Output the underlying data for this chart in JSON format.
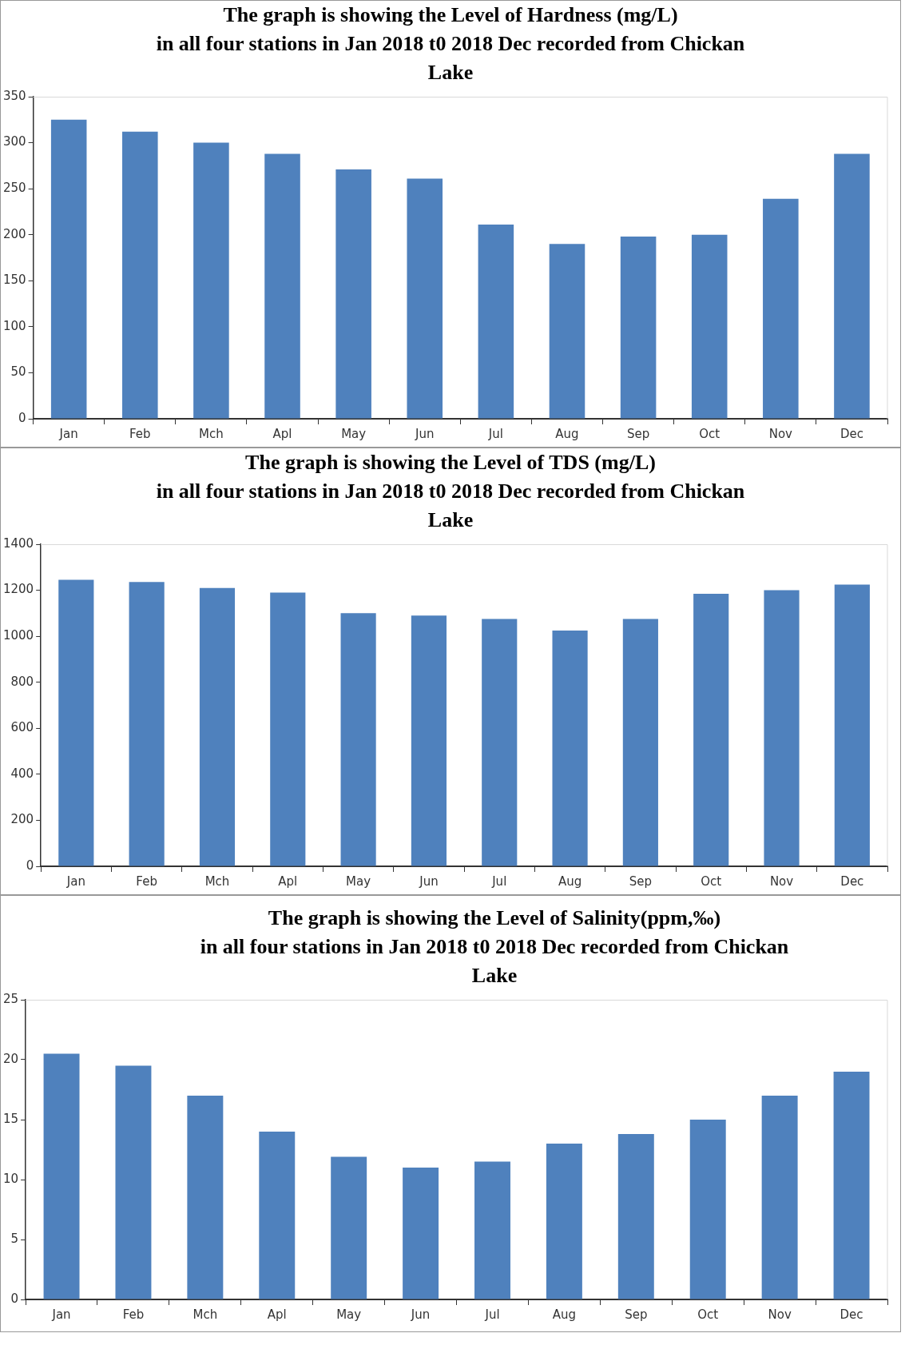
{
  "chart_data": [
    {
      "type": "bar",
      "title": "The graph is showing the Level of Hardness (mg/L)\nin all four stations in Jan 2018 t0 2018 Dec recorded from Chickan\nLake",
      "categories": [
        "Jan",
        "Feb",
        "Mch",
        "Apl",
        "May",
        "Jun",
        "Jul",
        "Aug",
        "Sep",
        "Oct",
        "Nov",
        "Dec"
      ],
      "values": [
        325,
        312,
        300,
        288,
        271,
        261,
        211,
        190,
        198,
        200,
        239,
        288
      ],
      "color": "#4f81bd",
      "ylim": [
        0,
        350
      ],
      "yticks": [
        0,
        50,
        100,
        150,
        200,
        250,
        300,
        350
      ],
      "grid": false
    },
    {
      "type": "bar",
      "title": "The graph is showing the Level of TDS (mg/L)\nin all four stations in Jan 2018 t0 2018 Dec recorded from Chickan\nLake",
      "categories": [
        "Jan",
        "Feb",
        "Mch",
        "Apl",
        "May",
        "Jun",
        "Jul",
        "Aug",
        "Sep",
        "Oct",
        "Nov",
        "Dec"
      ],
      "values": [
        1245,
        1236,
        1210,
        1190,
        1100,
        1090,
        1075,
        1025,
        1075,
        1185,
        1200,
        1225
      ],
      "color": "#4f81bd",
      "ylim": [
        0,
        1400
      ],
      "yticks": [
        0,
        200,
        400,
        600,
        800,
        1000,
        1200,
        1400
      ],
      "grid": false
    },
    {
      "type": "bar",
      "title": "The graph is showing the Level of Salinity(ppm,‰)\nin all four stations in Jan 2018 t0 2018 Dec recorded from Chickan\nLake",
      "categories": [
        "Jan",
        "Feb",
        "Mch",
        "Apl",
        "May",
        "Jun",
        "Jul",
        "Aug",
        "Sep",
        "Oct",
        "Nov",
        "Dec"
      ],
      "values": [
        20.5,
        19.5,
        17,
        14,
        11.9,
        11,
        11.5,
        13,
        13.8,
        15,
        17,
        19
      ],
      "color": "#4f81bd",
      "ylim": [
        0,
        25
      ],
      "yticks": [
        0,
        5,
        10,
        15,
        20,
        25
      ],
      "grid": false
    }
  ]
}
